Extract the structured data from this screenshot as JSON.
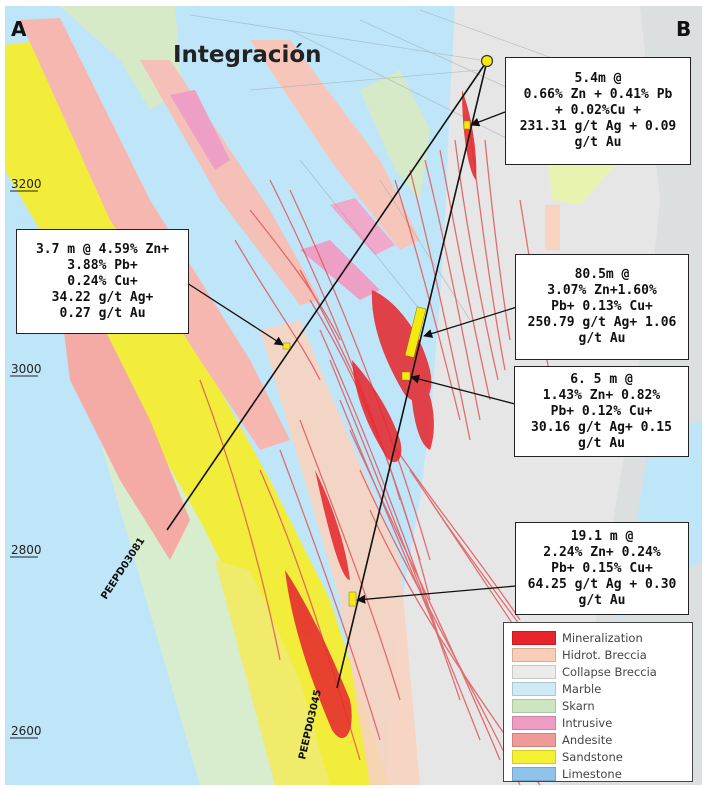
{
  "section": {
    "left_label": "A",
    "right_label": "B",
    "title": "Integración"
  },
  "elevations": [
    "3200",
    "3000",
    "2800",
    "2600"
  ],
  "drill_holes": [
    {
      "id": "PEEPD03081"
    },
    {
      "id": "PEEPD03045"
    }
  ],
  "intercepts": [
    {
      "lines": [
        "5.4m @",
        "0.66% Zn + 0.41% Pb",
        "+ 0.02%Cu +",
        "231.31 g/t Ag + 0.09",
        "g/t Au"
      ]
    },
    {
      "lines": [
        "3.7 m @ 4.59% Zn+",
        "3.88% Pb+",
        "0.24% Cu+",
        "34.22 g/t Ag+",
        "0.27 g/t Au"
      ]
    },
    {
      "lines": [
        "80.5m @",
        "3.07% Zn+1.60%",
        "Pb+ 0.13% Cu+",
        "250.79 g/t Ag+ 1.06",
        "g/t Au"
      ]
    },
    {
      "lines": [
        "6. 5 m @",
        "1.43% Zn+ 0.82%",
        "Pb+ 0.12% Cu+",
        "30.16 g/t Ag+ 0.15",
        "g/t Au"
      ]
    },
    {
      "lines": [
        "19.1 m @",
        "2.24% Zn+ 0.24%",
        "Pb+ 0.15% Cu+",
        "64.25 g/t Ag + 0.30",
        "g/t Au"
      ]
    }
  ],
  "legend": [
    {
      "label": "Mineralization",
      "color": "#e8232a"
    },
    {
      "label": "Hidrot. Breccia",
      "color": "#f9cdb7"
    },
    {
      "label": "Collapse Breccia",
      "color": "#ebebeb"
    },
    {
      "label": "Marble",
      "color": "#cfeaf5"
    },
    {
      "label": "Skarn",
      "color": "#cde6c2"
    },
    {
      "label": "Intrusive",
      "color": "#ef9cc4"
    },
    {
      "label": "Andesite",
      "color": "#f09a98"
    },
    {
      "label": "Sandstone",
      "color": "#f5f032"
    },
    {
      "label": "Limestone",
      "color": "#8fc3ea"
    }
  ]
}
